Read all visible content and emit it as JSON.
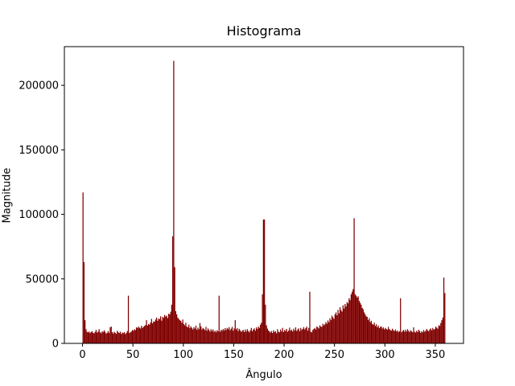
{
  "chart_data": {
    "type": "histogram",
    "title": "Histograma",
    "xlabel": "Ângulo",
    "ylabel": "Magnitude",
    "color": "#800000",
    "xlim": [
      -18,
      378
    ],
    "ylim": [
      0,
      230000
    ],
    "xticks": [
      0,
      50,
      100,
      150,
      200,
      250,
      300,
      350
    ],
    "yticks": [
      0,
      50000,
      100000,
      150000,
      200000
    ],
    "bins": [
      0,
      1,
      2,
      3,
      4,
      5,
      6,
      7,
      8,
      9,
      10,
      11,
      12,
      13,
      14,
      15,
      16,
      17,
      18,
      19,
      20,
      21,
      22,
      23,
      24,
      25,
      26,
      27,
      28,
      29,
      30,
      31,
      32,
      33,
      34,
      35,
      36,
      37,
      38,
      39,
      40,
      41,
      42,
      43,
      44,
      45,
      46,
      47,
      48,
      49,
      50,
      51,
      52,
      53,
      54,
      55,
      56,
      57,
      58,
      59,
      60,
      61,
      62,
      63,
      64,
      65,
      66,
      67,
      68,
      69,
      70,
      71,
      72,
      73,
      74,
      75,
      76,
      77,
      78,
      79,
      80,
      81,
      82,
      83,
      84,
      85,
      86,
      87,
      88,
      89,
      90,
      91,
      92,
      93,
      94,
      95,
      96,
      97,
      98,
      99,
      100,
      101,
      102,
      103,
      104,
      105,
      106,
      107,
      108,
      109,
      110,
      111,
      112,
      113,
      114,
      115,
      116,
      117,
      118,
      119,
      120,
      121,
      122,
      123,
      124,
      125,
      126,
      127,
      128,
      129,
      130,
      131,
      132,
      133,
      134,
      135,
      136,
      137,
      138,
      139,
      140,
      141,
      142,
      143,
      144,
      145,
      146,
      147,
      148,
      149,
      150,
      151,
      152,
      153,
      154,
      155,
      156,
      157,
      158,
      159,
      160,
      161,
      162,
      163,
      164,
      165,
      166,
      167,
      168,
      169,
      170,
      171,
      172,
      173,
      174,
      175,
      176,
      177,
      178,
      179,
      180,
      181,
      182,
      183,
      184,
      185,
      186,
      187,
      188,
      189,
      190,
      191,
      192,
      193,
      194,
      195,
      196,
      197,
      198,
      199,
      200,
      201,
      202,
      203,
      204,
      205,
      206,
      207,
      208,
      209,
      210,
      211,
      212,
      213,
      214,
      215,
      216,
      217,
      218,
      219,
      220,
      221,
      222,
      223,
      224,
      225,
      226,
      227,
      228,
      229,
      230,
      231,
      232,
      233,
      234,
      235,
      236,
      237,
      238,
      239,
      240,
      241,
      242,
      243,
      244,
      245,
      246,
      247,
      248,
      249,
      250,
      251,
      252,
      253,
      254,
      255,
      256,
      257,
      258,
      259,
      260,
      261,
      262,
      263,
      264,
      265,
      266,
      267,
      268,
      269,
      270,
      271,
      272,
      273,
      274,
      275,
      276,
      277,
      278,
      279,
      280,
      281,
      282,
      283,
      284,
      285,
      286,
      287,
      288,
      289,
      290,
      291,
      292,
      293,
      294,
      295,
      296,
      297,
      298,
      299,
      300,
      301,
      302,
      303,
      304,
      305,
      306,
      307,
      308,
      309,
      310,
      311,
      312,
      313,
      314,
      315,
      316,
      317,
      318,
      319,
      320,
      321,
      322,
      323,
      324,
      325,
      326,
      327,
      328,
      329,
      330,
      331,
      332,
      333,
      334,
      335,
      336,
      337,
      338,
      339,
      340,
      341,
      342,
      343,
      344,
      345,
      346,
      347,
      348,
      349,
      350,
      351,
      352,
      353,
      354,
      355,
      356,
      357,
      358,
      359,
      360
    ],
    "values": [
      117000,
      63000,
      18000,
      11000,
      9000,
      8500,
      9200,
      8000,
      8800,
      9500,
      8200,
      7800,
      9000,
      10500,
      8400,
      9100,
      11000,
      8600,
      7900,
      9300,
      8800,
      10200,
      9000,
      7500,
      8300,
      9600,
      8100,
      12500,
      13000,
      8700,
      7600,
      9000,
      8200,
      7400,
      9800,
      8600,
      8000,
      9100,
      7300,
      8400,
      7900,
      8800,
      7200,
      8100,
      9500,
      37000,
      8000,
      8600,
      9200,
      10400,
      9800,
      11000,
      10200,
      12500,
      11800,
      13000,
      12200,
      11500,
      13600,
      12000,
      12800,
      13500,
      14200,
      18000,
      13800,
      15000,
      14500,
      16200,
      19000,
      15500,
      17000,
      16800,
      18500,
      20000,
      17500,
      19200,
      18800,
      21000,
      17600,
      20500,
      19800,
      22000,
      20800,
      21500,
      19600,
      23000,
      22400,
      24500,
      30000,
      83000,
      219000,
      59000,
      25000,
      22500,
      20000,
      19000,
      18000,
      17500,
      16000,
      18500,
      15000,
      14000,
      16000,
      13000,
      12500,
      14500,
      11800,
      13200,
      12000,
      10800,
      12600,
      11500,
      13800,
      10500,
      12200,
      11000,
      15800,
      13200,
      10800,
      12000,
      11200,
      10200,
      12800,
      9800,
      11600,
      10500,
      9200,
      11000,
      9600,
      10800,
      8900,
      9900,
      8600,
      10200,
      9400,
      37000,
      9000,
      10500,
      9800,
      11200,
      10000,
      11800,
      10400,
      12000,
      11000,
      12600,
      10200,
      11400,
      12800,
      9800,
      11600,
      18000,
      10800,
      11900,
      9600,
      11300,
      10100,
      8900,
      9800,
      10400,
      8800,
      10800,
      9200,
      11000,
      9600,
      8600,
      10200,
      12000,
      9400,
      10800,
      11600,
      9800,
      12400,
      11200,
      13000,
      12000,
      14500,
      16000,
      38000,
      96000,
      96000,
      30000,
      14000,
      11500,
      10000,
      9200,
      8400,
      9600,
      8000,
      10200,
      8800,
      9400,
      7800,
      11000,
      9000,
      8600,
      10800,
      9200,
      12000,
      8800,
      10400,
      9600,
      11200,
      8900,
      10000,
      12200,
      9800,
      10600,
      9200,
      11400,
      10000,
      12400,
      9600,
      10800,
      11600,
      9400,
      12000,
      10400,
      11200,
      12600,
      10800,
      11800,
      13000,
      9800,
      12000,
      40000,
      9000,
      8600,
      10400,
      11200,
      12000,
      10800,
      13200,
      12400,
      11600,
      14000,
      13000,
      12800,
      15200,
      14000,
      14800,
      16500,
      15200,
      17800,
      16400,
      19500,
      18000,
      21500,
      20200,
      19000,
      22500,
      24000,
      21800,
      26000,
      23200,
      28000,
      25800,
      24600,
      29500,
      27000,
      30500,
      28600,
      32000,
      31000,
      35000,
      33500,
      38000,
      40000,
      42000,
      97000,
      38000,
      37000,
      35500,
      36500,
      33000,
      31500,
      30000,
      27500,
      26500,
      24000,
      22500,
      21000,
      20500,
      18000,
      19500,
      16500,
      17500,
      15000,
      14500,
      16000,
      13500,
      14800,
      12500,
      13800,
      11800,
      12800,
      13200,
      11500,
      12400,
      10800,
      12000,
      11200,
      10600,
      12800,
      11000,
      10400,
      9800,
      11400,
      10200,
      9600,
      10800,
      9200,
      10000,
      8800,
      9400,
      35000,
      8600,
      9600,
      10400,
      9000,
      10600,
      9200,
      11000,
      9800,
      8800,
      10200,
      9400,
      8600,
      12400,
      9000,
      8400,
      9800,
      8800,
      10600,
      9600,
      8200,
      9400,
      8600,
      10400,
      9000,
      9800,
      11200,
      10000,
      9400,
      10800,
      11600,
      10200,
      12000,
      10600,
      11200,
      13000,
      12200,
      11400,
      14000,
      13500,
      15800,
      18000,
      20000,
      51000,
      39000
    ]
  }
}
